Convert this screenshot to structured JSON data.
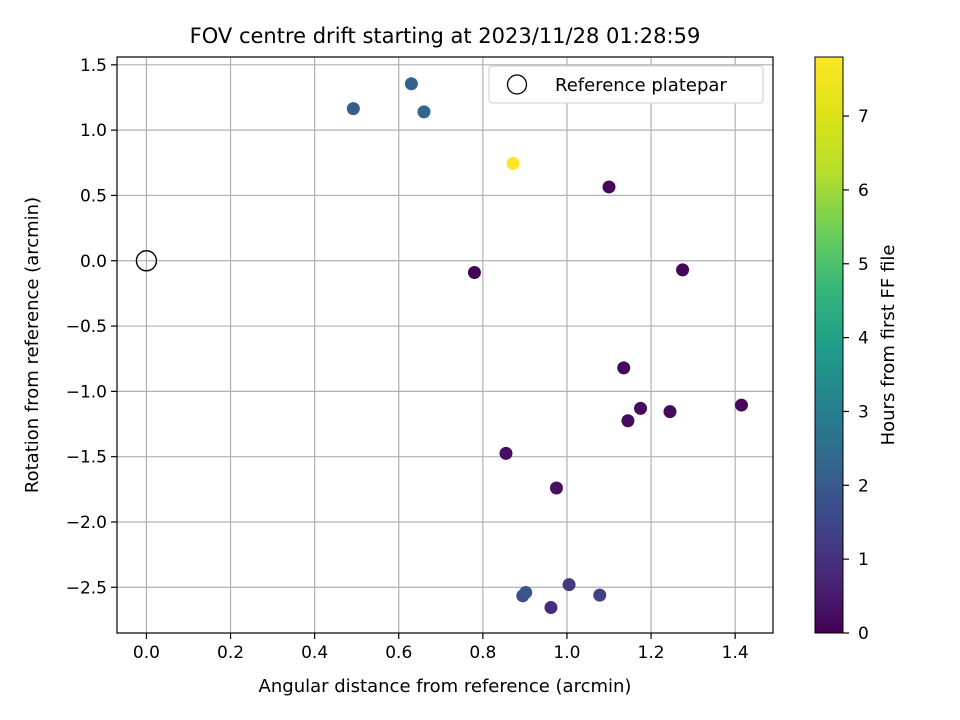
{
  "chart_data": {
    "type": "scatter",
    "title": "FOV centre drift starting at 2023/11/28 01:28:59",
    "xlabel": "Angular distance from reference (arcmin)",
    "ylabel": "Rotation from reference (arcmin)",
    "xlim": [
      -0.07,
      1.49
    ],
    "ylim": [
      -2.85,
      1.56
    ],
    "xticks": [
      0.0,
      0.2,
      0.4,
      0.6,
      0.8,
      1.0,
      1.2,
      1.4
    ],
    "xtick_labels": [
      "0.0",
      "0.2",
      "0.4",
      "0.6",
      "0.8",
      "1.0",
      "1.2",
      "1.4"
    ],
    "yticks": [
      1.5,
      1.0,
      0.5,
      0.0,
      -0.5,
      -1.0,
      -1.5,
      -2.0,
      -2.5
    ],
    "ytick_labels": [
      "1.5",
      "1.0",
      "0.5",
      "0.0",
      "−0.5",
      "−1.0",
      "−1.5",
      "−2.0",
      "−2.5"
    ],
    "grid": true,
    "legend": {
      "placement": "upper right",
      "entries": [
        {
          "label": "Reference platepar",
          "marker": "open-circle"
        }
      ]
    },
    "reference_point": {
      "x": 0.0,
      "y": 0.0
    },
    "colorbar": {
      "label": "Hours from first FF file",
      "range": [
        0,
        7.8
      ],
      "colormap": "viridis",
      "ticks": [
        0,
        1,
        2,
        3,
        4,
        5,
        6,
        7
      ],
      "tick_labels": [
        "0",
        "1",
        "2",
        "3",
        "4",
        "5",
        "6",
        "7"
      ]
    },
    "points": [
      {
        "x": 1.1,
        "y": 0.565,
        "hours": 0.1
      },
      {
        "x": 0.78,
        "y": -0.09,
        "hours": 0.1
      },
      {
        "x": 1.275,
        "y": -0.07,
        "hours": 0.1
      },
      {
        "x": 1.135,
        "y": -0.82,
        "hours": 0.15
      },
      {
        "x": 1.415,
        "y": -1.105,
        "hours": 0.15
      },
      {
        "x": 1.245,
        "y": -1.155,
        "hours": 0.2
      },
      {
        "x": 1.175,
        "y": -1.13,
        "hours": 0.2
      },
      {
        "x": 1.145,
        "y": -1.225,
        "hours": 0.2
      },
      {
        "x": 0.855,
        "y": -1.475,
        "hours": 0.25
      },
      {
        "x": 0.975,
        "y": -1.74,
        "hours": 0.3
      },
      {
        "x": 0.962,
        "y": -2.655,
        "hours": 0.9
      },
      {
        "x": 1.005,
        "y": -2.48,
        "hours": 1.2
      },
      {
        "x": 1.078,
        "y": -2.56,
        "hours": 1.4
      },
      {
        "x": 0.895,
        "y": -2.565,
        "hours": 1.6
      },
      {
        "x": 0.902,
        "y": -2.54,
        "hours": 1.95
      },
      {
        "x": 0.492,
        "y": 1.165,
        "hours": 2.1
      },
      {
        "x": 0.63,
        "y": 1.355,
        "hours": 2.2
      },
      {
        "x": 0.66,
        "y": 1.14,
        "hours": 2.3
      },
      {
        "x": 0.872,
        "y": 0.745,
        "hours": 7.8
      }
    ]
  }
}
